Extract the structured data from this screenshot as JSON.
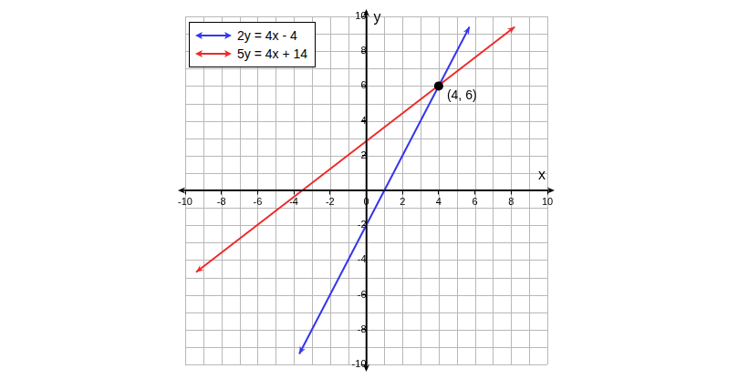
{
  "chart_data": {
    "type": "line",
    "x_label": "x",
    "y_label": "y",
    "xlim": [
      -10,
      10
    ],
    "ylim": [
      -10,
      10
    ],
    "xticks": [
      -10,
      -8,
      -6,
      -4,
      -2,
      0,
      2,
      4,
      6,
      8,
      10
    ],
    "yticks": [
      -10,
      -8,
      -6,
      -4,
      -2,
      2,
      4,
      6,
      8,
      10
    ],
    "grid": true,
    "legend": "upper left",
    "series": [
      {
        "name": "2y = 4x - 4",
        "color": "#3535ee",
        "marker": "arrow",
        "line_style": "solid",
        "x": [
          -3.7,
          5.7
        ],
        "values": [
          -9.4,
          9.4
        ]
      },
      {
        "name": "5y = 4x + 14",
        "color": "#ee2a2a",
        "marker": "arrow",
        "line_style": "solid",
        "x": [
          -9.4,
          8.2
        ],
        "values": [
          -4.7,
          9.4
        ]
      }
    ],
    "annotations": [
      {
        "x": 4,
        "y": 6,
        "label": "(4, 6)"
      }
    ]
  }
}
